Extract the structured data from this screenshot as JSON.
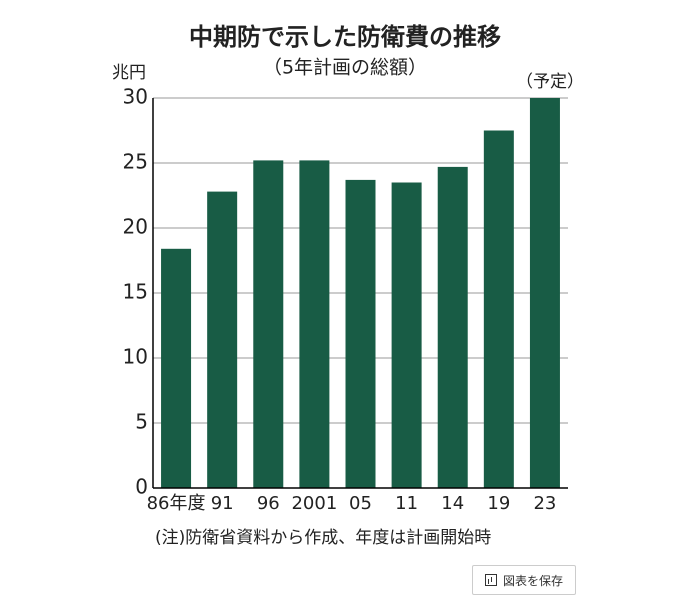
{
  "chart_data": {
    "type": "bar",
    "title": "中期防で示した防衛費の推移",
    "subtitle": "（5年計画の総額）",
    "y_label": "兆円",
    "annotation": "（予定）",
    "categories": [
      "86年度",
      "91",
      "96",
      "2001",
      "05",
      "11",
      "14",
      "19",
      "23"
    ],
    "values": [
      18.4,
      22.8,
      25.2,
      25.2,
      23.7,
      23.5,
      24.7,
      27.5,
      30
    ],
    "color": "#185c45",
    "ylim": [
      0,
      30
    ],
    "yticks": [
      0,
      5,
      10,
      15,
      20,
      25,
      30
    ],
    "grid": true,
    "note": "(注)防衛省資料から作成、年度は計画開始時"
  },
  "button": {
    "label": "図表を保存"
  }
}
